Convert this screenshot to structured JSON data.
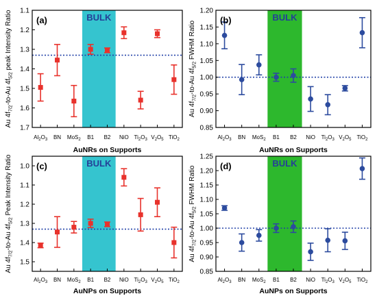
{
  "figure": {
    "panels": [
      "(a)",
      "(b)",
      "(c)",
      "(d)"
    ]
  },
  "colors": {
    "red_series": "#e8322c",
    "blue_series": "#2c4b9e",
    "cyan_bulk": "#35c4cf",
    "green_bulk": "#2db82d",
    "reference_line": "#1f3fa6",
    "bulk_text": "#243f97"
  },
  "chart_data": [
    {
      "id": "a",
      "panel_label": "(a)",
      "type": "scatter",
      "error_bars": true,
      "ylabel": "Au 4f7/2-to-Au 4f5/2 peak Intensity Ratio",
      "ylabel_parts": [
        "Au 4f",
        "7/2",
        "-to-Au 4f",
        "5/2",
        " peak Intensity Ratio"
      ],
      "xlabel": "AuNRs on Supports",
      "y_axis_inverted": true,
      "ylim": [
        1.1,
        1.7
      ],
      "yticks": [
        1.1,
        1.2,
        1.3,
        1.4,
        1.5,
        1.6,
        1.7
      ],
      "ytick_labels": [
        "1.1",
        "1.2",
        "1.3",
        "1.4",
        "1.5",
        "1.6",
        "1.7"
      ],
      "categories": [
        "Al2O3",
        "BN",
        "MoS2",
        "B1",
        "B2",
        "NiO",
        "Ti2O3",
        "V2O5",
        "TiO2"
      ],
      "reference_line": 1.33,
      "bulk_region": {
        "label": "BULK",
        "categories": [
          "B1",
          "B2"
        ],
        "color": "cyan"
      },
      "marker": "square",
      "series": [
        {
          "color": "red",
          "values": [
            1.495,
            1.355,
            1.565,
            1.3,
            1.305,
            1.215,
            1.56,
            1.22,
            1.455
          ],
          "error": [
            0.07,
            0.08,
            0.08,
            0.025,
            0.012,
            0.03,
            0.045,
            0.02,
            0.075
          ]
        }
      ]
    },
    {
      "id": "b",
      "panel_label": "(b)",
      "type": "scatter",
      "error_bars": true,
      "ylabel": "Au 4f7/2-to-Au 4f5/2 FWHM Ratio",
      "ylabel_parts": [
        "Au 4f",
        "7/2",
        "-to-Au 4f",
        "5/2",
        " FWHM Ratio"
      ],
      "xlabel": "AuNRs on Supports",
      "y_axis_inverted": false,
      "ylim": [
        0.85,
        1.2
      ],
      "yticks": [
        0.85,
        0.9,
        0.95,
        1.0,
        1.05,
        1.1,
        1.15,
        1.2
      ],
      "ytick_labels": [
        "0.85",
        "0.90",
        "0.95",
        "1.00",
        "1.05",
        "1.10",
        "1.15",
        "1.20"
      ],
      "categories": [
        "Al2O3",
        "BN",
        "MoS2",
        "B1",
        "B2",
        "NiO",
        "Ti2O3",
        "V2O5",
        "TiO2"
      ],
      "reference_line": 1.0,
      "bulk_region": {
        "label": "BULK",
        "categories": [
          "B1",
          "B2"
        ],
        "color": "green"
      },
      "marker": "circle",
      "series": [
        {
          "color": "blue",
          "values": [
            1.125,
            0.993,
            1.037,
            1.0,
            1.005,
            0.935,
            0.918,
            0.967,
            1.133
          ],
          "error": [
            0.04,
            0.045,
            0.03,
            0.012,
            0.02,
            0.037,
            0.03,
            0.008,
            0.045
          ]
        }
      ]
    },
    {
      "id": "c",
      "panel_label": "(c)",
      "type": "scatter",
      "error_bars": true,
      "ylabel": "Au 4f7/2-to-Au 4f5/2 Peak Intensity Ratio",
      "ylabel_parts": [
        "Au 4f",
        "7/2",
        "-to-Au 4f",
        "5/2",
        " Peak Intensity Ratio"
      ],
      "xlabel": "AuNPs on Supports",
      "y_axis_inverted": true,
      "ylim": [
        0.95,
        1.55
      ],
      "yticks": [
        1.0,
        1.1,
        1.2,
        1.3,
        1.4,
        1.5
      ],
      "ytick_labels": [
        "1.0",
        "1.1",
        "1.2",
        "1.3",
        "1.4",
        "1.5"
      ],
      "categories": [
        "Al2O3",
        "BN",
        "MoS2",
        "B1",
        "B2",
        "NiO",
        "Ti2O3",
        "V2O5",
        "TiO2"
      ],
      "reference_line": 1.33,
      "bulk_region": {
        "label": "BULK",
        "categories": [
          "B1",
          "B2"
        ],
        "color": "cyan"
      },
      "marker": "square",
      "series": [
        {
          "color": "red",
          "values": [
            1.415,
            1.345,
            1.32,
            1.3,
            1.305,
            1.06,
            1.255,
            1.19,
            1.4
          ],
          "error": [
            0.012,
            0.08,
            0.03,
            0.022,
            0.012,
            0.045,
            0.085,
            0.075,
            0.08
          ]
        }
      ]
    },
    {
      "id": "d",
      "panel_label": "(d)",
      "type": "scatter",
      "error_bars": true,
      "ylabel": "Au 4f7/2-to-Au 4f5/2 FWHM Ratio",
      "ylabel_parts": [
        "Au 4f",
        "7/2",
        "-to-Au 4f",
        "5/2",
        " FWHM Ratio"
      ],
      "xlabel": "AuNPs on Supports",
      "y_axis_inverted": false,
      "ylim": [
        0.85,
        1.25
      ],
      "yticks": [
        0.85,
        0.9,
        0.95,
        1.0,
        1.05,
        1.1,
        1.15,
        1.2,
        1.25
      ],
      "ytick_labels": [
        "0.85",
        "0.90",
        "0.95",
        "1.00",
        "1.05",
        "1.10",
        "1.15",
        "1.20",
        "1.25"
      ],
      "categories": [
        "Al2O3",
        "BN",
        "MoS2",
        "B1",
        "B2",
        "NiO",
        "Ti2O3",
        "V2O5",
        "TiO2"
      ],
      "reference_line": 1.0,
      "bulk_region": {
        "label": "BULK",
        "categories": [
          "B1",
          "B2"
        ],
        "color": "green"
      },
      "marker": "circle",
      "series": [
        {
          "color": "blue",
          "values": [
            1.07,
            0.95,
            0.975,
            1.0,
            1.005,
            0.918,
            0.958,
            0.956,
            1.207
          ],
          "error": [
            0.008,
            0.03,
            0.02,
            0.015,
            0.02,
            0.03,
            0.04,
            0.03,
            0.037
          ]
        }
      ]
    }
  ]
}
